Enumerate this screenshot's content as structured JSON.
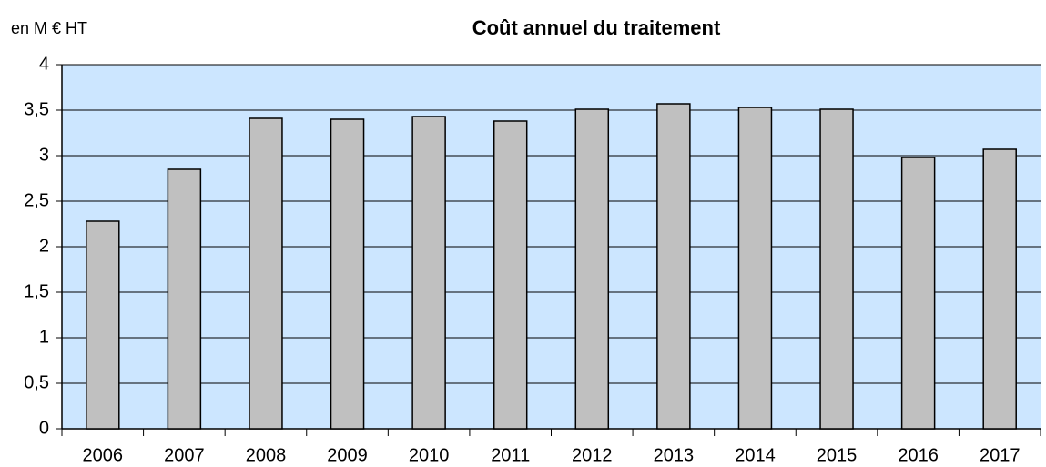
{
  "chart_data": {
    "type": "bar",
    "title": "Coût annuel du traitement",
    "unit_label": "en M € HT",
    "categories": [
      "2006",
      "2007",
      "2008",
      "2009",
      "2010",
      "2011",
      "2012",
      "2013",
      "2014",
      "2015",
      "2016",
      "2017"
    ],
    "values": [
      2.28,
      2.85,
      3.41,
      3.4,
      3.43,
      3.38,
      3.51,
      3.57,
      3.53,
      3.51,
      2.98,
      3.07
    ],
    "color": "#c0c0c0",
    "background": "#cce6ff",
    "ylim": [
      0,
      4
    ],
    "yticks": [
      0,
      {
        "value": 0.5,
        "label": "0,5"
      },
      1,
      {
        "value": 1.5,
        "label": "1,5"
      },
      2,
      {
        "value": 2.5,
        "label": "2,5"
      },
      3,
      {
        "value": 3.5,
        "label": "3,5"
      },
      4
    ],
    "grid": true
  }
}
